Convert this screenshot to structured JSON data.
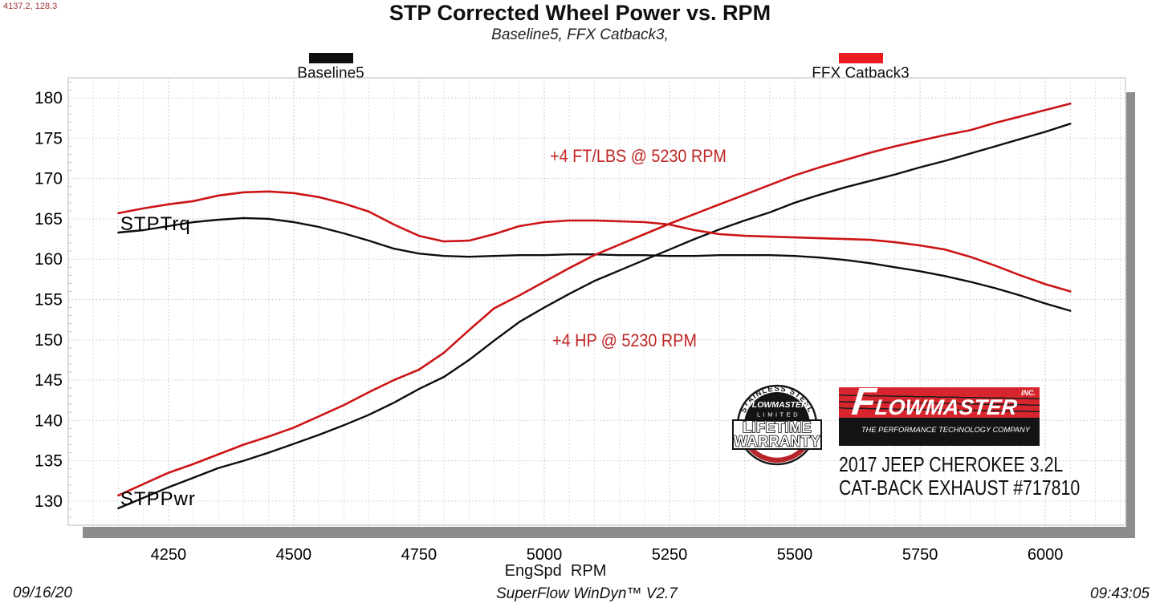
{
  "header": {
    "cursor_coords": "4137.2, 128.3",
    "title": "STP Corrected Wheel Power vs. RPM",
    "subtitle": "Baseline5, FFX Catback3,"
  },
  "legend": {
    "items": [
      {
        "label": "Baseline5",
        "color": "#0f0f0f"
      },
      {
        "label": "FFX Catback3",
        "color": "#ec1b21"
      }
    ]
  },
  "axis": {
    "x_title": "EngSpd  RPM"
  },
  "footer": {
    "date": "09/16/20",
    "software": "SuperFlow WinDyn™ V2.7",
    "time": "09:43:05"
  },
  "branding": {
    "badge": {
      "arc_top": "STAINLESS STEEL",
      "brand": "FLOWMASTER",
      "limited": "LIMITED",
      "banner_line1": "LIFETIME",
      "banner_line2": "WARRANTY"
    },
    "logo": {
      "brand": "FLOWMASTER",
      "inc": "INC.",
      "tagline": "THE PERFORMANCE TECHNOLOGY COMPANY"
    },
    "vehicle_line1": "2017 JEEP CHEROKEE 3.2L",
    "vehicle_line2": "CAT-BACK EXHAUST #717810"
  },
  "chart_data": {
    "type": "line",
    "title": "STP Corrected Wheel Power vs. RPM",
    "xlabel": "EngSpd RPM",
    "ylabel": "",
    "xlim": [
      4050,
      6160
    ],
    "ylim": [
      127,
      182.5
    ],
    "x_ticks": [
      4250,
      4500,
      4750,
      5000,
      5250,
      5500,
      5750,
      6000
    ],
    "y_ticks": [
      130,
      135,
      140,
      145,
      150,
      155,
      160,
      165,
      170,
      175,
      180
    ],
    "minor_x_step": 50,
    "grid": true,
    "x": [
      4150,
      4200,
      4250,
      4300,
      4350,
      4400,
      4450,
      4500,
      4550,
      4600,
      4650,
      4700,
      4750,
      4800,
      4850,
      4900,
      4950,
      5000,
      5050,
      5100,
      5150,
      5200,
      5250,
      5300,
      5350,
      5400,
      5450,
      5500,
      5550,
      5600,
      5650,
      5700,
      5750,
      5800,
      5850,
      5900,
      5950,
      6000,
      6050
    ],
    "series": [
      {
        "name": "Baseline5 STPTrq",
        "color": "#0d0d0d",
        "width": 2.4,
        "values": [
          163.3,
          163.6,
          164.1,
          164.6,
          164.9,
          165.1,
          165.0,
          164.6,
          164.0,
          163.2,
          162.3,
          161.3,
          160.7,
          160.4,
          160.3,
          160.4,
          160.5,
          160.5,
          160.6,
          160.6,
          160.5,
          160.5,
          160.4,
          160.4,
          160.5,
          160.5,
          160.5,
          160.4,
          160.2,
          159.9,
          159.5,
          159.0,
          158.5,
          157.9,
          157.2,
          156.4,
          155.5,
          154.5,
          153.6
        ]
      },
      {
        "name": "Baseline5 STPPwr",
        "color": "#0d0d0d",
        "width": 2.4,
        "values": [
          129.1,
          130.4,
          131.7,
          132.9,
          134.1,
          135.0,
          136.0,
          137.1,
          138.2,
          139.4,
          140.7,
          142.2,
          143.9,
          145.4,
          147.5,
          149.9,
          152.2,
          154.0,
          155.7,
          157.3,
          158.6,
          159.9,
          161.2,
          162.5,
          163.7,
          164.8,
          165.8,
          167.0,
          168.0,
          168.9,
          169.7,
          170.5,
          171.4,
          172.2,
          173.1,
          174.0,
          174.9,
          175.8,
          176.8
        ]
      },
      {
        "name": "FFX Catback3 STPTrq",
        "color": "#cc1416",
        "width": 2.6,
        "values": [
          165.7,
          166.3,
          166.8,
          167.2,
          167.9,
          168.3,
          168.4,
          168.2,
          167.7,
          166.9,
          165.9,
          164.3,
          162.9,
          162.2,
          162.3,
          163.1,
          164.1,
          164.6,
          164.8,
          164.8,
          164.7,
          164.6,
          164.3,
          163.6,
          163.1,
          162.9,
          162.8,
          162.7,
          162.6,
          162.5,
          162.4,
          162.1,
          161.7,
          161.2,
          160.3,
          159.2,
          158.0,
          156.9,
          156.0
        ]
      },
      {
        "name": "FFX Catback3 STPPwr",
        "color": "#cc1416",
        "width": 2.6,
        "values": [
          130.7,
          132.1,
          133.5,
          134.6,
          135.8,
          137.0,
          138.0,
          139.1,
          140.5,
          141.9,
          143.5,
          145.0,
          146.3,
          148.4,
          151.2,
          153.9,
          155.5,
          157.2,
          158.9,
          160.5,
          161.8,
          163.1,
          164.4,
          165.6,
          166.8,
          168.0,
          169.2,
          170.4,
          171.4,
          172.3,
          173.2,
          174.0,
          174.7,
          175.4,
          176.0,
          176.9,
          177.7,
          178.5,
          179.3
        ]
      }
    ],
    "annotations": [
      {
        "text": "+4 FT/LBS @ 5230 RPM",
        "rpm": 5188,
        "value": 172.8
      },
      {
        "text": "+4 HP @ 5230 RPM",
        "rpm": 5160,
        "value": 149.9
      }
    ],
    "series_labels": [
      {
        "text": "STPTrq",
        "rpm": 4154,
        "value": 164.3
      },
      {
        "text": "STPPwr",
        "rpm": 4154,
        "value": 130.2
      }
    ],
    "legend_position": "top"
  }
}
